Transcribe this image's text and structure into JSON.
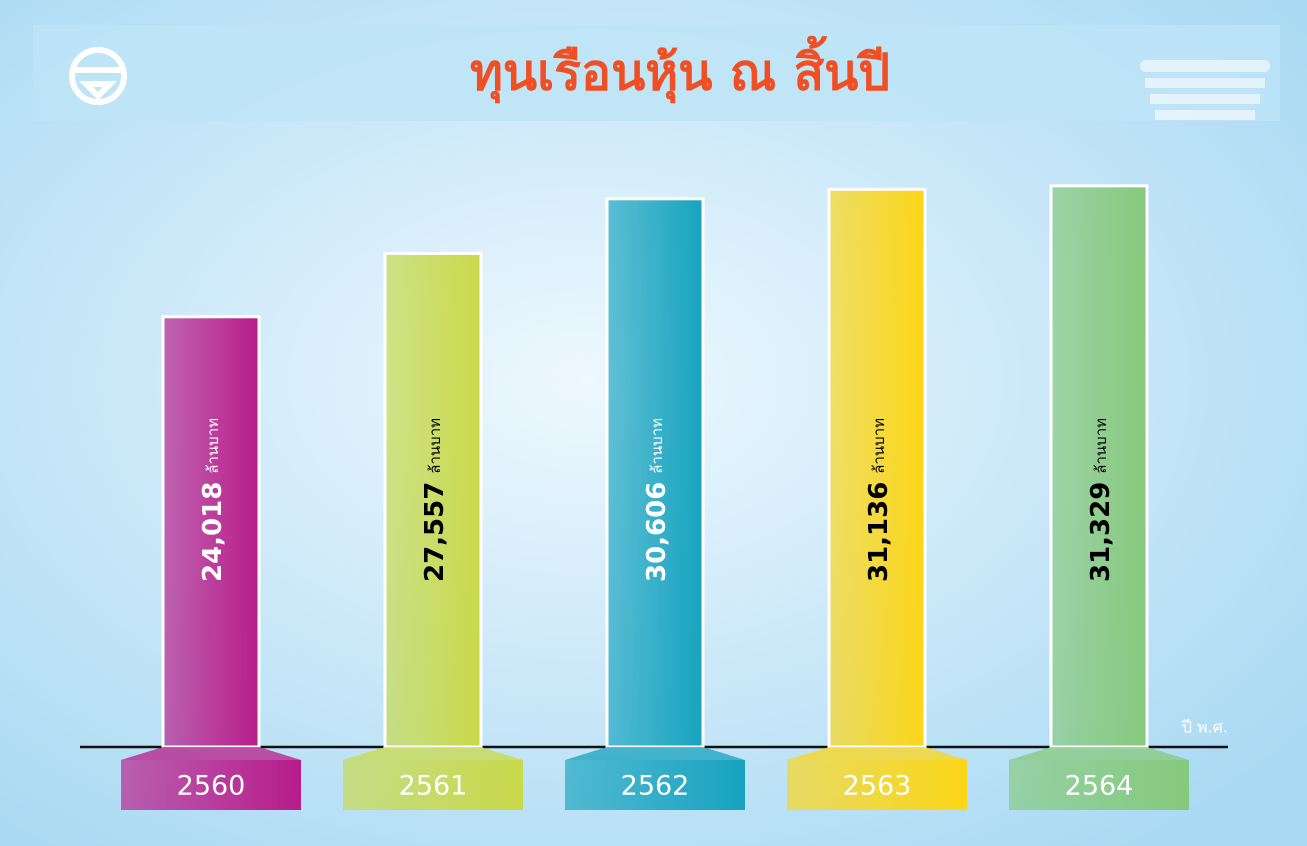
{
  "chart_data": {
    "type": "bar",
    "title": "ทุนเรือนหุ้น ณ สิ้นปี",
    "x_label": "ปี พ.ศ.",
    "unit": "ล้านบาท",
    "categories": [
      "2560",
      "2561",
      "2562",
      "2563",
      "2564"
    ],
    "values": [
      24018,
      27557,
      30606,
      31136,
      31329
    ],
    "value_labels": [
      "24,018",
      "27,557",
      "30,606",
      "31,136",
      "31,329"
    ],
    "colors": [
      "#b81c8a",
      "#c8d94a",
      "#17a3bf",
      "#fcd617",
      "#86c97c"
    ],
    "ylim": [
      0,
      34000
    ]
  }
}
